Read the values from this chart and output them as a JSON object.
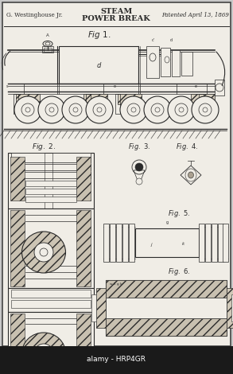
{
  "title_left": "G. Westinghouse Jr.",
  "title_center": "STEAM\nPOWER BREAK",
  "title_right": "Patented April 13, 1869",
  "watermark": "alamy - HRP4GR",
  "bg_color": "#c8c8c8",
  "paper_color": "#f0ede6",
  "line_color": "#2a2a2a",
  "wm_bg": "#1a1a1a",
  "wm_color": "#ffffff"
}
